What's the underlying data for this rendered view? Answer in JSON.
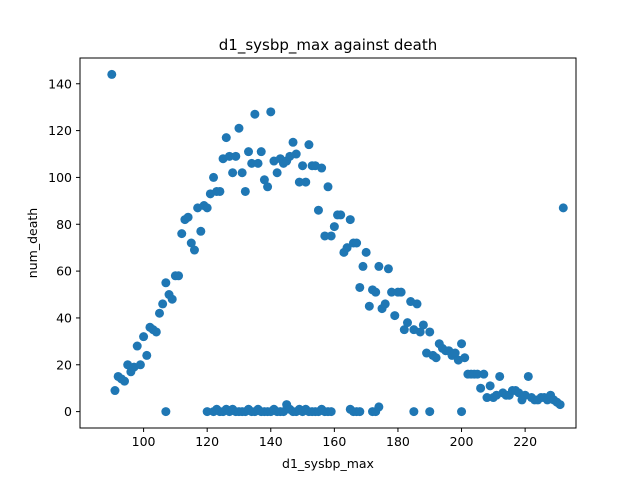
{
  "chart_data": {
    "type": "scatter",
    "title": "d1_sysbp_max against death",
    "xlabel": "d1_sysbp_max",
    "ylabel": "num_death",
    "xlim": [
      80,
      236
    ],
    "ylim": [
      -7,
      151
    ],
    "xticks": [
      100,
      120,
      140,
      160,
      180,
      200,
      220
    ],
    "yticks": [
      0,
      20,
      40,
      60,
      80,
      100,
      120,
      140
    ],
    "grid": false,
    "marker_color": "#1f77b4",
    "series": [
      {
        "x": [
          90,
          91,
          92,
          93,
          94,
          95,
          96,
          97,
          98,
          99,
          100,
          101,
          102,
          103,
          104,
          105,
          106,
          107,
          108,
          109,
          110,
          111,
          112,
          113,
          114,
          115,
          116,
          117,
          118,
          119,
          120,
          121,
          122,
          123,
          124,
          125,
          126,
          127,
          128,
          129,
          130,
          131,
          132,
          133,
          134,
          135,
          136,
          137,
          138,
          139,
          140,
          141,
          142,
          143,
          144,
          145,
          146,
          147,
          148,
          149,
          150,
          151,
          152,
          153,
          154,
          155,
          156,
          157,
          158,
          159,
          160,
          161,
          162,
          163,
          164,
          165,
          166,
          167,
          168,
          169,
          170,
          171,
          172,
          173,
          174,
          175,
          176,
          177,
          178,
          179,
          180,
          181,
          182,
          183,
          184,
          185,
          186,
          187,
          188,
          189,
          190,
          191,
          192,
          193,
          194,
          195,
          196,
          197,
          198,
          199,
          200,
          201,
          202,
          203,
          204,
          205,
          206,
          207,
          208,
          209,
          210,
          211,
          212,
          213,
          214,
          215,
          216,
          217,
          218,
          219,
          220,
          221,
          222,
          223,
          224,
          225,
          226,
          227,
          228,
          229,
          230,
          231,
          232,
          107,
          120,
          122,
          123,
          124,
          125,
          126,
          127,
          128,
          129,
          130,
          131,
          132,
          133,
          134,
          135,
          136,
          137,
          138,
          139,
          140,
          141,
          142,
          143,
          144,
          145,
          146,
          147,
          148,
          149,
          150,
          151,
          152,
          153,
          154,
          155,
          156,
          157,
          158,
          159,
          165,
          166,
          167,
          168,
          172,
          173,
          174,
          185,
          190,
          200
        ],
        "y": [
          144,
          9,
          15,
          14,
          13,
          20,
          17,
          19,
          28,
          20,
          32,
          24,
          36,
          35,
          34,
          42,
          46,
          55,
          50,
          48,
          58,
          58,
          76,
          82,
          83,
          72,
          69,
          87,
          77,
          88,
          87,
          93,
          100,
          94,
          94,
          108,
          117,
          109,
          102,
          109,
          121,
          102,
          94,
          111,
          106,
          127,
          106,
          111,
          99,
          96,
          128,
          107,
          102,
          108,
          106,
          107,
          109,
          115,
          110,
          98,
          105,
          98,
          114,
          105,
          105,
          86,
          104,
          75,
          96,
          75,
          79,
          84,
          84,
          68,
          70,
          82,
          72,
          72,
          53,
          62,
          68,
          45,
          52,
          51,
          62,
          44,
          46,
          61,
          51,
          41,
          51,
          51,
          35,
          38,
          47,
          35,
          46,
          34,
          37,
          25,
          34,
          24,
          23,
          29,
          27,
          26,
          26,
          24,
          25,
          22,
          29,
          23,
          16,
          16,
          16,
          16,
          10,
          16,
          6,
          11,
          6,
          7,
          15,
          8,
          7,
          7,
          9,
          9,
          8,
          5,
          7,
          15,
          6,
          5,
          5,
          6,
          6,
          5,
          7,
          5,
          4,
          3,
          87,
          0,
          0,
          0,
          1,
          0,
          0,
          1,
          0,
          1,
          0,
          0,
          0,
          0,
          1,
          0,
          0,
          1,
          0,
          0,
          0,
          0,
          1,
          0,
          0,
          0,
          3,
          1,
          0,
          0,
          1,
          0,
          1,
          0,
          0,
          0,
          0,
          1,
          0,
          0,
          0,
          1,
          0,
          0,
          0,
          0,
          0,
          2,
          0,
          0,
          0
        ]
      }
    ]
  }
}
